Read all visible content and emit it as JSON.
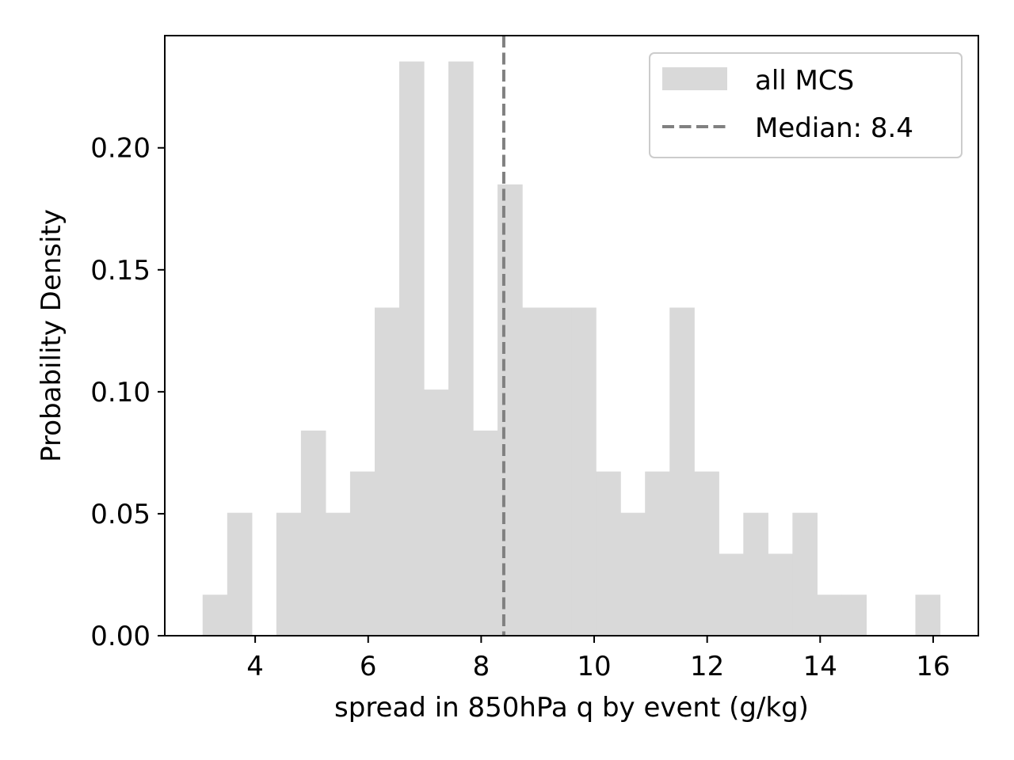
{
  "chart_data": {
    "type": "bar",
    "histogram": true,
    "xlabel": "spread in 850hPa q by event (g/kg)",
    "ylabel": "Probability Density",
    "xlim": [
      2.4,
      16.8
    ],
    "ylim": [
      0,
      0.246
    ],
    "xticks": [
      4,
      6,
      8,
      10,
      12,
      14,
      16
    ],
    "xtick_labels": [
      "4",
      "6",
      "8",
      "10",
      "12",
      "14",
      "16"
    ],
    "yticks": [
      0.0,
      0.05,
      0.1,
      0.15,
      0.2
    ],
    "ytick_labels": [
      "0.00",
      "0.05",
      "0.10",
      "0.15",
      "0.20"
    ],
    "bin_edges": [
      3.07,
      3.505,
      3.94,
      4.375,
      4.81,
      5.245,
      5.68,
      6.115,
      6.55,
      6.985,
      7.42,
      7.855,
      8.29,
      8.725,
      9.16,
      9.595,
      10.03,
      10.465,
      10.9,
      11.335,
      11.77,
      12.205,
      12.64,
      13.075,
      13.51,
      13.945,
      14.38,
      14.815,
      15.25,
      15.685,
      16.12
    ],
    "values": [
      0.0168,
      0.0504,
      0.0,
      0.0504,
      0.0841,
      0.0504,
      0.0673,
      0.1345,
      0.2354,
      0.1009,
      0.2354,
      0.0841,
      0.185,
      0.1345,
      0.1345,
      0.1345,
      0.0673,
      0.0504,
      0.0673,
      0.1345,
      0.0673,
      0.0336,
      0.0504,
      0.0336,
      0.0504,
      0.0168,
      0.0168,
      0.0,
      0.0,
      0.0168
    ],
    "series": [
      {
        "name": "all MCS",
        "color": "#d9d9d9"
      }
    ],
    "median": {
      "value": 8.4,
      "label": "Median: 8.4",
      "color": "#808080",
      "style": "dashed"
    },
    "legend": {
      "position": "top-right",
      "entries": [
        "all MCS",
        "Median: 8.4"
      ]
    },
    "grid": false
  }
}
